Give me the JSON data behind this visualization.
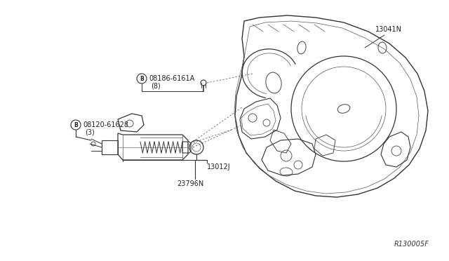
{
  "background_color": "#ffffff",
  "fig_width": 6.4,
  "fig_height": 3.72,
  "dpi": 100,
  "text_color": "#222222",
  "line_color": "#333333",
  "font_size_label": 7.0,
  "font_size_ref": 7.0,
  "labels": {
    "part1": "13041N",
    "part2_line1": "°08186-6161A",
    "part2_line2": "(8)",
    "part3_line1": "°08120-61628",
    "part3_line2": "(3)",
    "part4": "13012J",
    "part5": "23796N",
    "ref": "R130005F"
  }
}
